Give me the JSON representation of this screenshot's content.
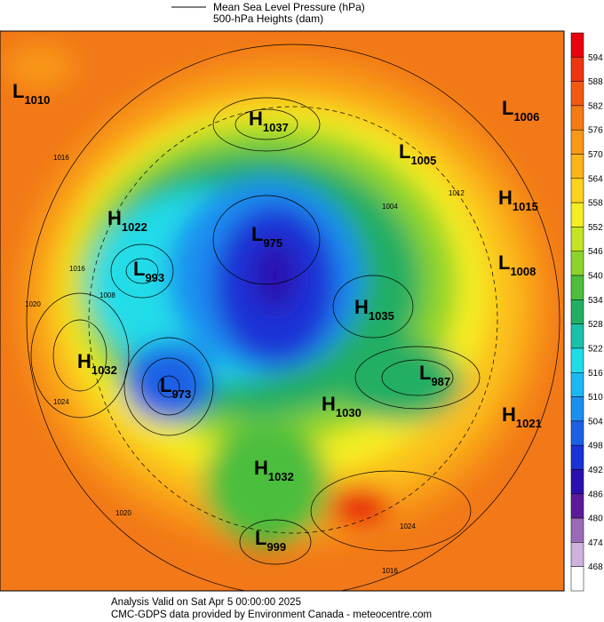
{
  "header": {
    "line_legend": "Mean Sea Level Pressure (hPa)",
    "fill_legend": "500-hPa Heights (dam)"
  },
  "centers": [
    {
      "kind": "L",
      "value": "1010"
    },
    {
      "kind": "H",
      "value": "1037"
    },
    {
      "kind": "L",
      "value": "1006"
    },
    {
      "kind": "L",
      "value": "1005"
    },
    {
      "kind": "H",
      "value": "1015"
    },
    {
      "kind": "H",
      "value": "1022"
    },
    {
      "kind": "L",
      "value": "975"
    },
    {
      "kind": "L",
      "value": "993"
    },
    {
      "kind": "L",
      "value": "1008"
    },
    {
      "kind": "H",
      "value": "1035"
    },
    {
      "kind": "H",
      "value": "1032"
    },
    {
      "kind": "L",
      "value": "973"
    },
    {
      "kind": "L",
      "value": "987"
    },
    {
      "kind": "H",
      "value": "1030"
    },
    {
      "kind": "H",
      "value": "1021"
    },
    {
      "kind": "H",
      "value": "1032"
    },
    {
      "kind": "L",
      "value": "999"
    }
  ],
  "contour_labels": [
    "1016",
    "1020",
    "1024",
    "1008",
    "1004",
    "1012",
    "1016",
    "1020",
    "1024",
    "1016"
  ],
  "colorbar": {
    "ticks": [
      "594",
      "588",
      "582",
      "576",
      "570",
      "564",
      "558",
      "552",
      "546",
      "540",
      "534",
      "528",
      "522",
      "516",
      "510",
      "504",
      "498",
      "492",
      "486",
      "480",
      "474",
      "468"
    ],
    "colors": [
      "#e8000c",
      "#ee3410",
      "#f25a12",
      "#f47a14",
      "#f89816",
      "#fbb51a",
      "#fdd21e",
      "#f6ee24",
      "#c4e424",
      "#8cd42c",
      "#4cbe3c",
      "#22ae64",
      "#1cc0a8",
      "#20dce8",
      "#1cb8f2",
      "#1c8ef0",
      "#1c60e6",
      "#1a32d6",
      "#2a10b0",
      "#5c1a98",
      "#9a6ab8",
      "#cfb2dc",
      "#ffffff"
    ]
  },
  "footer": {
    "line1": "Analysis Valid on Sat Apr  5 00:00:00 2025",
    "line2": "CMC-GDPS data provided by Environment Canada - meteocentre.com"
  }
}
